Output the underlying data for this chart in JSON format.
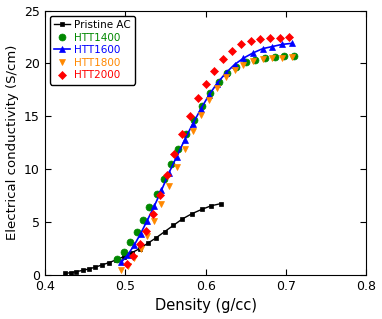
{
  "title": "",
  "xlabel": "Density (g/cc)",
  "ylabel": "Electrical conductivity (S/cm)",
  "xlim": [
    0.4,
    0.8
  ],
  "ylim": [
    0,
    25
  ],
  "xticks": [
    0.4,
    0.5,
    0.6,
    0.7,
    0.8
  ],
  "yticks": [
    0,
    5,
    10,
    15,
    20,
    25
  ],
  "series": [
    {
      "label": "Pristine AC",
      "color": "#000000",
      "marker": "s",
      "markersize": 3.5,
      "linewidth": 1.0,
      "x": [
        0.425,
        0.432,
        0.439,
        0.447,
        0.455,
        0.463,
        0.471,
        0.48,
        0.489,
        0.498,
        0.508,
        0.518,
        0.528,
        0.538,
        0.549,
        0.56,
        0.571,
        0.583,
        0.595,
        0.607,
        0.619
      ],
      "y": [
        0.15,
        0.22,
        0.32,
        0.44,
        0.58,
        0.75,
        0.95,
        1.18,
        1.44,
        1.74,
        2.1,
        2.5,
        3.0,
        3.5,
        4.1,
        4.7,
        5.3,
        5.8,
        6.2,
        6.55,
        6.75
      ]
    },
    {
      "label": "HTT1400",
      "color": "#008800",
      "marker": "o",
      "markersize": 5,
      "linewidth": 0,
      "x": [
        0.49,
        0.498,
        0.506,
        0.514,
        0.522,
        0.53,
        0.539,
        0.548,
        0.557,
        0.566,
        0.576,
        0.586,
        0.596,
        0.606,
        0.616,
        0.627,
        0.638,
        0.65,
        0.662,
        0.674,
        0.686,
        0.698,
        0.71
      ],
      "y": [
        1.5,
        2.2,
        3.1,
        4.1,
        5.2,
        6.4,
        7.7,
        9.1,
        10.5,
        11.9,
        13.3,
        14.7,
        16.0,
        17.2,
        18.2,
        19.1,
        19.7,
        20.1,
        20.3,
        20.5,
        20.6,
        20.7,
        20.75
      ]
    },
    {
      "label": "HTT1600",
      "color": "#0000ff",
      "marker": "^",
      "markersize": 5,
      "linewidth": 1.2,
      "linestyle": "-",
      "x": [
        0.495,
        0.503,
        0.511,
        0.519,
        0.527,
        0.536,
        0.545,
        0.554,
        0.564,
        0.574,
        0.584,
        0.594,
        0.604,
        0.614,
        0.625,
        0.636,
        0.647,
        0.659,
        0.671,
        0.683,
        0.695,
        0.707
      ],
      "y": [
        1.2,
        1.9,
        2.8,
        3.9,
        5.1,
        6.5,
        8.0,
        9.6,
        11.2,
        12.8,
        14.3,
        15.7,
        17.0,
        18.1,
        19.1,
        19.9,
        20.5,
        21.0,
        21.4,
        21.6,
        21.8,
        21.9
      ]
    },
    {
      "label": "HTT1800",
      "color": "#ff8800",
      "marker": "v",
      "markersize": 5,
      "linewidth": 0,
      "x": [
        0.495,
        0.503,
        0.511,
        0.519,
        0.527,
        0.536,
        0.545,
        0.554,
        0.564,
        0.574,
        0.584,
        0.594,
        0.604,
        0.614,
        0.625,
        0.636,
        0.647,
        0.659,
        0.671,
        0.683,
        0.695,
        0.707
      ],
      "y": [
        0.5,
        0.9,
        1.6,
        2.5,
        3.7,
        5.1,
        6.7,
        8.4,
        10.2,
        11.9,
        13.6,
        15.1,
        16.5,
        17.7,
        18.7,
        19.4,
        19.9,
        20.2,
        20.4,
        20.5,
        20.55,
        20.6
      ]
    },
    {
      "label": "HTT2000",
      "color": "#ff0000",
      "marker": "D",
      "markersize": 4,
      "linewidth": 0,
      "x": [
        0.502,
        0.51,
        0.518,
        0.526,
        0.534,
        0.543,
        0.552,
        0.561,
        0.571,
        0.581,
        0.591,
        0.601,
        0.611,
        0.622,
        0.633,
        0.644,
        0.656,
        0.668,
        0.68,
        0.692,
        0.704
      ],
      "y": [
        1.0,
        1.8,
        2.9,
        4.2,
        5.8,
        7.6,
        9.5,
        11.4,
        13.3,
        15.0,
        16.7,
        18.1,
        19.3,
        20.4,
        21.2,
        21.8,
        22.1,
        22.3,
        22.4,
        22.45,
        22.5
      ]
    }
  ],
  "legend_colors": {
    "Pristine AC": "#000000",
    "HTT1400": "#008800",
    "HTT1600": "#0000ff",
    "HTT1800": "#ff8800",
    "HTT2000": "#ff0000"
  },
  "background_color": "#ffffff"
}
